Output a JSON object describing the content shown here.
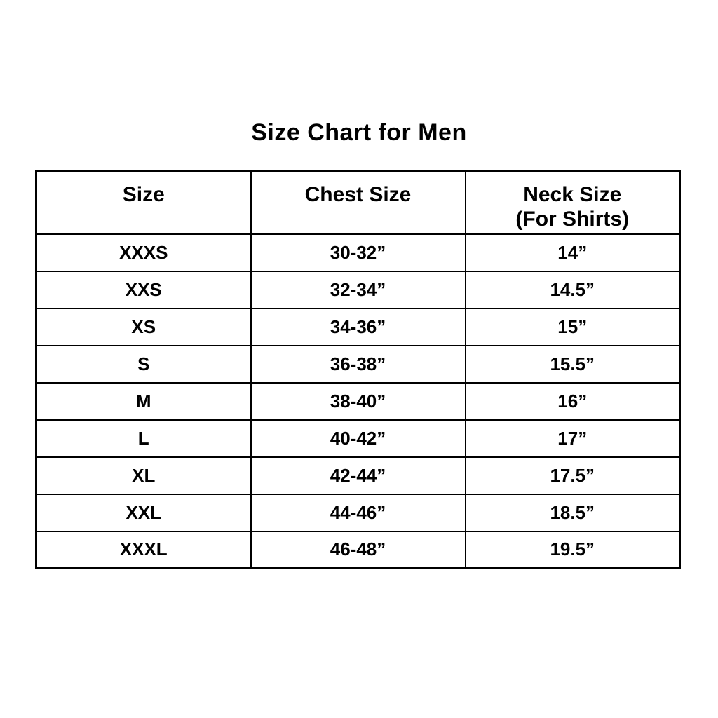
{
  "page": {
    "background_color": "#ffffff",
    "text_color": "#000000",
    "border_color": "#000000"
  },
  "chart_data": {
    "type": "table",
    "title": "Size Chart for Men",
    "columns": [
      "Size",
      "Chest Size",
      "Neck Size"
    ],
    "column_subtitles": [
      "",
      "",
      "(For Shirts)"
    ],
    "rows": [
      [
        "XXXS",
        "30-32”",
        "14”"
      ],
      [
        "XXS",
        "32-34”",
        "14.5”"
      ],
      [
        "XS",
        "34-36”",
        "15”"
      ],
      [
        "S",
        "36-38”",
        "15.5”"
      ],
      [
        "M",
        "38-40”",
        "16”"
      ],
      [
        "L",
        "40-42”",
        "17”"
      ],
      [
        "XL",
        "42-44”",
        "17.5”"
      ],
      [
        "XXL",
        "44-46”",
        "18.5”"
      ],
      [
        "XXXL",
        "46-48”",
        "19.5”"
      ]
    ],
    "layout": {
      "grid": "full black borders",
      "columns_equal_width": true,
      "text_alignment": "center",
      "font_weight": "bold"
    }
  }
}
